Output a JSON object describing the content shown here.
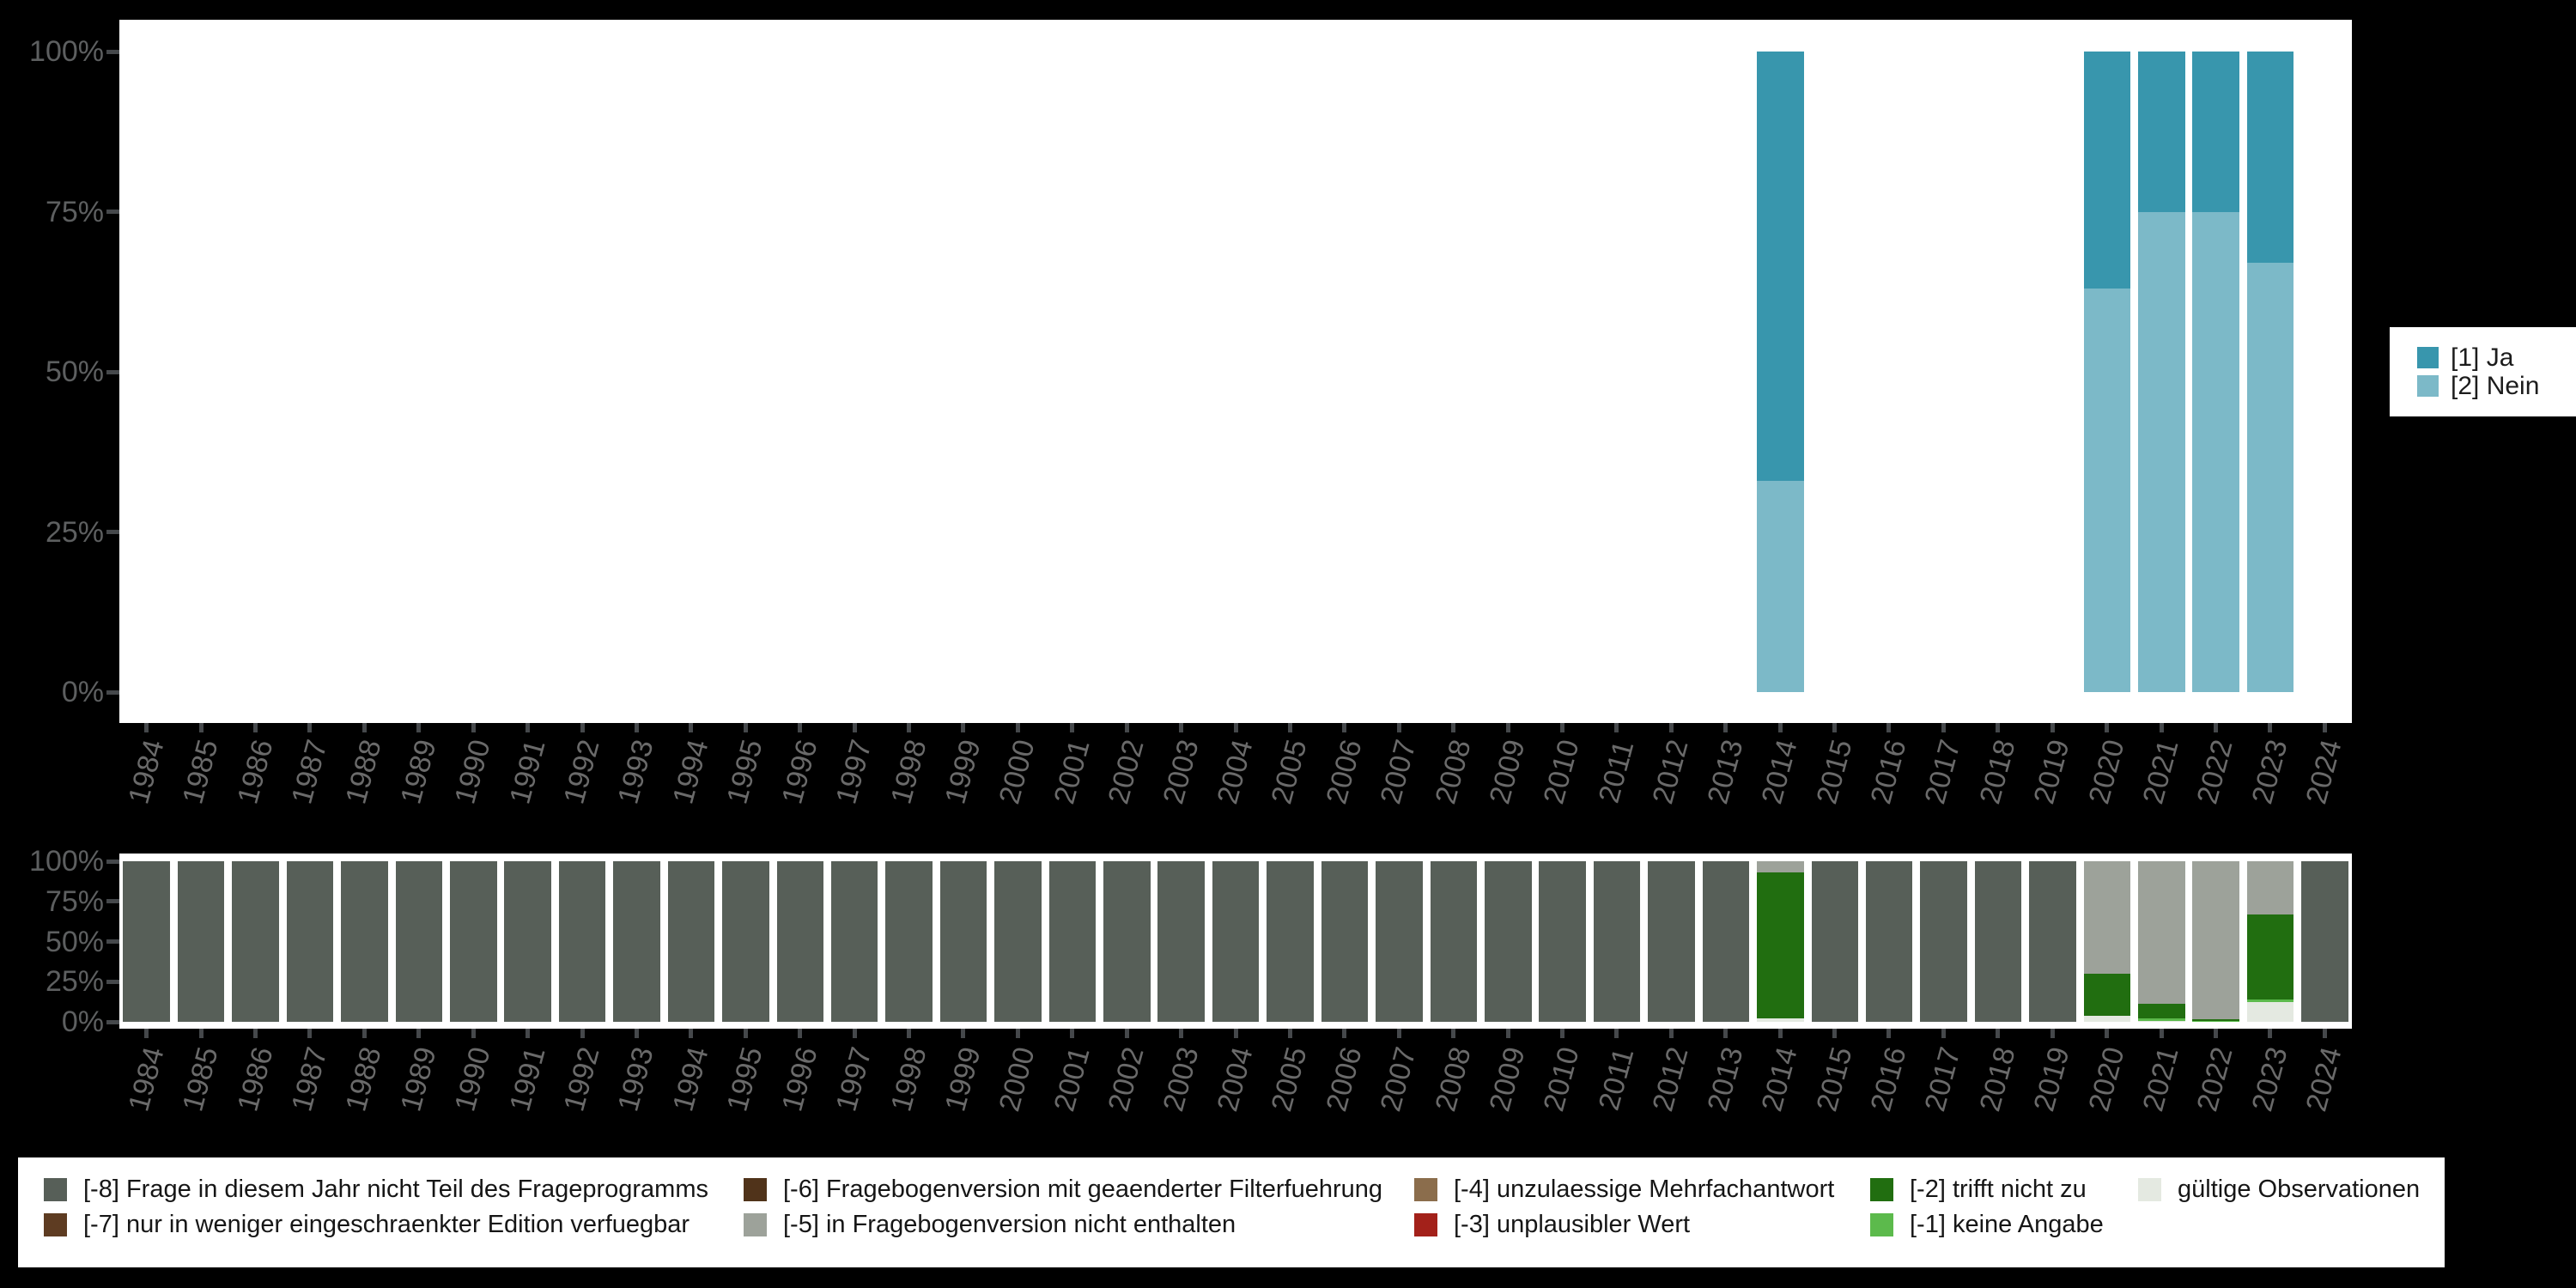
{
  "axis": {
    "years": [
      "1984",
      "1985",
      "1986",
      "1987",
      "1988",
      "1989",
      "1990",
      "1991",
      "1992",
      "1993",
      "1994",
      "1995",
      "1996",
      "1997",
      "1998",
      "1999",
      "2000",
      "2001",
      "2002",
      "2003",
      "2004",
      "2005",
      "2006",
      "2007",
      "2008",
      "2009",
      "2010",
      "2011",
      "2012",
      "2013",
      "2014",
      "2015",
      "2016",
      "2017",
      "2018",
      "2019",
      "2020",
      "2021",
      "2022",
      "2023",
      "2024"
    ]
  },
  "chart_data": [
    {
      "type": "bar",
      "stacked": true,
      "unit": "percent",
      "title": "",
      "xlabel": "",
      "ylabel": "",
      "ylim": [
        0,
        100
      ],
      "grid": false,
      "legend_position": "right",
      "categories": [
        "1984",
        "1985",
        "1986",
        "1987",
        "1988",
        "1989",
        "1990",
        "1991",
        "1992",
        "1993",
        "1994",
        "1995",
        "1996",
        "1997",
        "1998",
        "1999",
        "2000",
        "2001",
        "2002",
        "2003",
        "2004",
        "2005",
        "2006",
        "2007",
        "2008",
        "2009",
        "2010",
        "2011",
        "2012",
        "2013",
        "2014",
        "2015",
        "2016",
        "2017",
        "2018",
        "2019",
        "2020",
        "2021",
        "2022",
        "2023",
        "2024"
      ],
      "yticks": [
        {
          "label": "100%",
          "value": 100
        },
        {
          "label": "75%",
          "value": 75
        },
        {
          "label": "50%",
          "value": 50
        },
        {
          "label": "25%",
          "value": 25
        },
        {
          "label": "0%",
          "value": 0
        }
      ],
      "series": [
        {
          "name": "[1] Ja",
          "color": "#3896ad",
          "values": {
            "2014": 67,
            "2020": 37,
            "2021": 25,
            "2022": 25,
            "2023": 33
          }
        },
        {
          "name": "[2] Nein",
          "color": "#7cb9c8",
          "values": {
            "2014": 33,
            "2020": 63,
            "2021": 75,
            "2022": 75,
            "2023": 67
          }
        }
      ]
    },
    {
      "type": "bar",
      "stacked": true,
      "unit": "percent",
      "title": "",
      "xlabel": "",
      "ylabel": "",
      "ylim": [
        0,
        100
      ],
      "grid": false,
      "legend_position": "bottom",
      "categories": [
        "1984",
        "1985",
        "1986",
        "1987",
        "1988",
        "1989",
        "1990",
        "1991",
        "1992",
        "1993",
        "1994",
        "1995",
        "1996",
        "1997",
        "1998",
        "1999",
        "2000",
        "2001",
        "2002",
        "2003",
        "2004",
        "2005",
        "2006",
        "2007",
        "2008",
        "2009",
        "2010",
        "2011",
        "2012",
        "2013",
        "2014",
        "2015",
        "2016",
        "2017",
        "2018",
        "2019",
        "2020",
        "2021",
        "2022",
        "2023",
        "2024"
      ],
      "yticks": [
        {
          "label": "100%",
          "value": 100
        },
        {
          "label": "75%",
          "value": 75
        },
        {
          "label": "50%",
          "value": 50
        },
        {
          "label": "25%",
          "value": 25
        },
        {
          "label": "0%",
          "value": 0
        }
      ],
      "series": [
        {
          "name": "[-8] Frage in diesem Jahr nicht Teil des Frageprogramms",
          "color": "#575f58",
          "values": {
            "1984": 100,
            "1985": 100,
            "1986": 100,
            "1987": 100,
            "1988": 100,
            "1989": 100,
            "1990": 100,
            "1991": 100,
            "1992": 100,
            "1993": 100,
            "1994": 100,
            "1995": 100,
            "1996": 100,
            "1997": 100,
            "1998": 100,
            "1999": 100,
            "2000": 100,
            "2001": 100,
            "2002": 100,
            "2003": 100,
            "2004": 100,
            "2005": 100,
            "2006": 100,
            "2007": 100,
            "2008": 100,
            "2009": 100,
            "2010": 100,
            "2011": 100,
            "2012": 100,
            "2013": 100,
            "2014": 0,
            "2015": 100,
            "2016": 100,
            "2017": 100,
            "2018": 100,
            "2019": 100,
            "2020": 0,
            "2021": 0,
            "2022": 0,
            "2023": 0,
            "2024": 100
          }
        },
        {
          "name": "[-7] nur in weniger eingeschraenkter Edition verfuegbar",
          "color": "#5e3c22",
          "values": {}
        },
        {
          "name": "[-6] Fragebogenversion mit geaenderter Filterfuehrung",
          "color": "#50331a",
          "values": {}
        },
        {
          "name": "[-5] in Fragebogenversion nicht enthalten",
          "color": "#9da29a",
          "values": {
            "2014": 7,
            "2020": 70,
            "2021": 89,
            "2022": 98.5,
            "2023": 33
          }
        },
        {
          "name": "[-4] unzulaessige Mehrfachantwort",
          "color": "#8b6d4c",
          "values": {}
        },
        {
          "name": "[-3] unplausibler Wert",
          "color": "#a3211a",
          "values": {}
        },
        {
          "name": "[-2] trifft nicht zu",
          "color": "#216e10",
          "values": {
            "2014": 91,
            "2020": 26,
            "2021": 9,
            "2022": 1,
            "2023": 53
          }
        },
        {
          "name": "[-1] keine Angabe",
          "color": "#5cba4c",
          "values": {
            "2021": 1.3,
            "2022": 0.5,
            "2023": 1.5
          }
        },
        {
          "name": "gültige Observationen",
          "color": "#e4e9e1",
          "values": {
            "2014": 2,
            "2020": 4,
            "2021": 0.7,
            "2023": 12.5
          }
        }
      ]
    }
  ],
  "legend_top": {
    "items": [
      {
        "label": "[1] Ja",
        "color": "#3896ad"
      },
      {
        "label": "[2] Nein",
        "color": "#7cb9c8"
      }
    ]
  },
  "legend_bottom": {
    "columns": [
      [
        {
          "label": "[-8] Frage in diesem Jahr nicht Teil des Frageprogramms",
          "color": "#575f58"
        },
        {
          "label": "[-7] nur in weniger eingeschraenkter Edition verfuegbar",
          "color": "#5e3c22"
        }
      ],
      [
        {
          "label": "[-6] Fragebogenversion mit geaenderter Filterfuehrung",
          "color": "#50331a"
        },
        {
          "label": "[-5] in Fragebogenversion nicht enthalten",
          "color": "#9da29a"
        }
      ],
      [
        {
          "label": "[-4] unzulaessige Mehrfachantwort",
          "color": "#8b6d4c"
        },
        {
          "label": "[-3] unplausibler Wert",
          "color": "#a3211a"
        }
      ],
      [
        {
          "label": "[-2] trifft nicht zu",
          "color": "#216e10"
        },
        {
          "label": "[-1] keine Angabe",
          "color": "#5cba4c"
        }
      ],
      [
        {
          "label": "gültige Observationen",
          "color": "#e4e9e1"
        }
      ]
    ]
  }
}
